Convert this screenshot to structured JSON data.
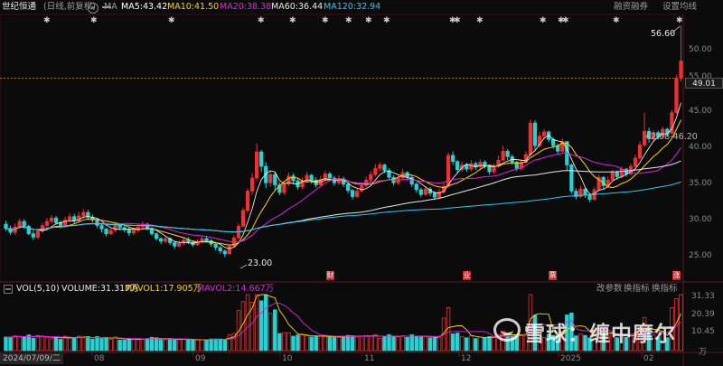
{
  "header": {
    "stock_name": "世纪恒通",
    "mode": "(日线,前复权)",
    "ma_label": "MA",
    "ma_items": [
      {
        "text": "MA5:43.42",
        "color": "#ffffff"
      },
      {
        "text": "MA10:41.50",
        "color": "#ffd60a"
      },
      {
        "text": "MA20:38.38",
        "color": "#e020e0"
      },
      {
        "text": "MA60:36.44",
        "color": "#e8e8e8"
      },
      {
        "text": "MA120:32.94",
        "color": "#2ec8f0"
      }
    ],
    "right_buttons": [
      "融资融券",
      "设置均线"
    ],
    "more_icon": "ellipsis-icon",
    "settings_icon": "gear-icon"
  },
  "price_axis": {
    "labels": [
      "55.00",
      "50.00",
      "45.00",
      "40.00",
      "35.00",
      "30.00",
      "25.00"
    ],
    "current": "49.01"
  },
  "annotations": {
    "high": "56.60",
    "low": "23.00",
    "range": "42.08-46.20"
  },
  "event_marks": [
    "财",
    "业",
    "票",
    "涨"
  ],
  "volume_panel": {
    "title": "VOL(5,10)",
    "volume": "VOLUME:31.317万",
    "mavol1": "MAVOL1:17.905万",
    "mavol2": "MAVOL2:14.667万",
    "buttons": [
      "改参数",
      "换指标",
      "换指标"
    ],
    "axis_labels": [
      "31.33",
      "20.39",
      "10.45"
    ],
    "axis_unit": "万"
  },
  "time_axis": {
    "start": "2024/07/09/二",
    "months": [
      "08",
      "09",
      "10",
      "11",
      "12",
      "2025",
      "02"
    ]
  },
  "watermark": "雪球：缠中摩尔",
  "chart_data": {
    "type": "candlestick",
    "ylim": [
      21.5,
      58
    ],
    "up_color": "#f03030",
    "down_color": "#29d2d2",
    "candles": [
      [
        27.8,
        27.2,
        28.3,
        26.8
      ],
      [
        27.2,
        26.6,
        27.6,
        26.2
      ],
      [
        26.6,
        27.4,
        27.9,
        26.3
      ],
      [
        27.4,
        28.2,
        28.6,
        27.1
      ],
      [
        28.2,
        27.5,
        28.5,
        27.1
      ],
      [
        27.5,
        26.4,
        27.7,
        26.2
      ],
      [
        26.4,
        25.9,
        26.8,
        25.5
      ],
      [
        25.9,
        26.8,
        27.2,
        25.6
      ],
      [
        26.8,
        27.6,
        28.0,
        26.5
      ],
      [
        27.6,
        28.2,
        28.7,
        27.3
      ],
      [
        28.2,
        28.7,
        29.1,
        27.9
      ],
      [
        28.7,
        28.0,
        29.0,
        27.7
      ],
      [
        28.0,
        27.6,
        28.3,
        27.2
      ],
      [
        27.6,
        28.4,
        28.9,
        27.4
      ],
      [
        28.4,
        28.9,
        29.4,
        28.0
      ],
      [
        28.9,
        28.3,
        29.3,
        27.9
      ],
      [
        28.3,
        29.0,
        29.6,
        28.0
      ],
      [
        29.0,
        29.5,
        30.0,
        28.6
      ],
      [
        29.5,
        28.8,
        29.9,
        28.4
      ],
      [
        28.8,
        28.4,
        29.2,
        28.0
      ],
      [
        28.4,
        27.6,
        28.6,
        27.2
      ],
      [
        27.6,
        27.1,
        27.8,
        26.6
      ],
      [
        27.1,
        26.4,
        27.3,
        26.0
      ],
      [
        26.4,
        26.9,
        27.2,
        26.2
      ],
      [
        26.9,
        27.6,
        28.0,
        26.6
      ],
      [
        27.6,
        27.3,
        27.9,
        26.9
      ],
      [
        27.3,
        27.0,
        27.6,
        26.6
      ],
      [
        27.0,
        26.5,
        27.3,
        26.1
      ],
      [
        26.5,
        26.9,
        27.3,
        26.2
      ],
      [
        26.9,
        27.4,
        27.8,
        26.6
      ],
      [
        27.4,
        27.8,
        28.2,
        27.0
      ],
      [
        27.8,
        27.2,
        28.0,
        26.9
      ],
      [
        27.2,
        26.4,
        27.3,
        26.1
      ],
      [
        26.4,
        25.7,
        26.6,
        25.4
      ],
      [
        25.7,
        25.3,
        25.9,
        24.9
      ],
      [
        25.3,
        25.7,
        26.0,
        25.0
      ],
      [
        25.7,
        25.1,
        25.9,
        24.8
      ],
      [
        25.1,
        24.6,
        25.3,
        24.2
      ],
      [
        24.6,
        25.0,
        25.4,
        24.4
      ],
      [
        25.0,
        25.5,
        25.8,
        24.7
      ],
      [
        25.5,
        25.2,
        25.9,
        24.9
      ],
      [
        25.2,
        24.8,
        25.4,
        24.5
      ],
      [
        24.8,
        25.3,
        25.6,
        24.6
      ],
      [
        25.3,
        25.7,
        26.0,
        25.0
      ],
      [
        25.7,
        25.4,
        26.1,
        25.1
      ],
      [
        25.4,
        24.9,
        25.6,
        24.5
      ],
      [
        24.9,
        24.4,
        25.1,
        24.0
      ],
      [
        24.4,
        23.9,
        24.6,
        23.5
      ],
      [
        23.9,
        23.5,
        24.1,
        23.0
      ],
      [
        23.5,
        24.6,
        24.9,
        23.3
      ],
      [
        24.6,
        25.8,
        26.2,
        24.4
      ],
      [
        25.8,
        27.5,
        27.9,
        25.6
      ],
      [
        27.5,
        29.8,
        30.2,
        27.3
      ],
      [
        29.8,
        32.6,
        33.0,
        29.5
      ],
      [
        32.6,
        34.5,
        35.2,
        32.0
      ],
      [
        34.5,
        38.3,
        39.5,
        34.1
      ],
      [
        38.3,
        36.2,
        38.6,
        35.4
      ],
      [
        36.2,
        33.8,
        36.8,
        33.0
      ],
      [
        33.8,
        35.0,
        35.6,
        33.2
      ],
      [
        35.0,
        33.5,
        35.4,
        32.8
      ],
      [
        33.5,
        32.4,
        33.9,
        32.0
      ],
      [
        32.4,
        33.6,
        34.1,
        32.1
      ],
      [
        33.6,
        34.8,
        35.3,
        33.3
      ],
      [
        34.8,
        34.1,
        35.2,
        33.6
      ],
      [
        34.1,
        33.2,
        34.5,
        32.8
      ],
      [
        33.2,
        34.1,
        34.6,
        32.9
      ],
      [
        34.1,
        34.9,
        35.4,
        33.8
      ],
      [
        34.9,
        34.2,
        35.1,
        33.7
      ],
      [
        34.2,
        33.5,
        34.6,
        33.1
      ],
      [
        33.5,
        34.3,
        34.8,
        33.2
      ],
      [
        34.3,
        35.1,
        35.6,
        34.0
      ],
      [
        35.1,
        34.5,
        35.4,
        34.0
      ],
      [
        34.5,
        33.8,
        34.8,
        33.4
      ],
      [
        33.8,
        34.4,
        34.9,
        33.5
      ],
      [
        34.4,
        33.6,
        34.7,
        33.2
      ],
      [
        33.6,
        32.7,
        33.9,
        32.3
      ],
      [
        32.7,
        31.8,
        32.9,
        31.4
      ],
      [
        31.8,
        32.6,
        33.0,
        31.6
      ],
      [
        32.6,
        33.4,
        33.9,
        32.4
      ],
      [
        33.4,
        34.2,
        34.7,
        33.1
      ],
      [
        34.2,
        35.0,
        35.5,
        33.9
      ],
      [
        35.0,
        35.9,
        36.5,
        34.7
      ],
      [
        35.9,
        36.4,
        36.8,
        35.5
      ],
      [
        36.4,
        35.6,
        36.6,
        35.2
      ],
      [
        35.6,
        34.6,
        35.9,
        34.2
      ],
      [
        34.6,
        33.8,
        34.9,
        33.4
      ],
      [
        33.8,
        34.5,
        35.0,
        33.5
      ],
      [
        34.5,
        35.3,
        35.8,
        34.2
      ],
      [
        35.3,
        34.6,
        35.5,
        34.2
      ],
      [
        34.6,
        33.6,
        34.9,
        33.2
      ],
      [
        33.6,
        32.8,
        33.9,
        32.4
      ],
      [
        32.8,
        32.1,
        33.1,
        31.7
      ],
      [
        32.1,
        32.9,
        33.3,
        31.9
      ],
      [
        32.9,
        32.3,
        33.2,
        31.9
      ],
      [
        32.3,
        31.7,
        32.6,
        31.3
      ],
      [
        31.7,
        32.5,
        32.9,
        31.4
      ],
      [
        32.5,
        33.3,
        33.8,
        32.2
      ],
      [
        33.3,
        37.8,
        38.2,
        33.1
      ],
      [
        37.8,
        36.9,
        38.4,
        36.4
      ],
      [
        36.9,
        35.7,
        37.1,
        35.2
      ],
      [
        35.7,
        36.4,
        36.9,
        35.4
      ],
      [
        36.4,
        35.8,
        36.7,
        35.4
      ],
      [
        35.8,
        36.6,
        37.1,
        35.5
      ],
      [
        36.6,
        36.1,
        36.9,
        35.7
      ],
      [
        36.1,
        36.8,
        37.2,
        35.8
      ],
      [
        36.8,
        36.2,
        37.1,
        35.9
      ],
      [
        36.2,
        35.4,
        36.4,
        35.0
      ],
      [
        35.4,
        36.2,
        36.6,
        35.1
      ],
      [
        36.2,
        37.1,
        37.8,
        36.0
      ],
      [
        37.1,
        38.4,
        39.2,
        36.9
      ],
      [
        38.4,
        37.6,
        38.7,
        37.1
      ],
      [
        37.6,
        36.8,
        37.9,
        36.4
      ],
      [
        36.8,
        35.9,
        37.0,
        35.5
      ],
      [
        35.9,
        36.8,
        37.2,
        35.6
      ],
      [
        36.8,
        37.9,
        38.4,
        36.6
      ],
      [
        37.9,
        42.5,
        43.0,
        37.7
      ],
      [
        42.5,
        39.2,
        42.9,
        38.6
      ],
      [
        39.2,
        40.6,
        41.2,
        38.9
      ],
      [
        40.6,
        41.2,
        41.6,
        40.2
      ],
      [
        41.2,
        40.1,
        41.4,
        39.7
      ],
      [
        40.1,
        39.2,
        40.4,
        38.8
      ],
      [
        39.2,
        38.4,
        39.5,
        37.9
      ],
      [
        38.4,
        39.8,
        40.2,
        38.2
      ],
      [
        39.8,
        36.4,
        39.9,
        35.6
      ],
      [
        36.4,
        32.6,
        36.6,
        32.2
      ],
      [
        32.6,
        31.8,
        33.0,
        31.4
      ],
      [
        31.8,
        32.9,
        33.4,
        31.6
      ],
      [
        32.9,
        32.0,
        33.2,
        31.6
      ],
      [
        32.0,
        31.4,
        32.3,
        31.0
      ],
      [
        31.4,
        32.8,
        33.2,
        31.2
      ],
      [
        32.8,
        34.6,
        35.0,
        32.6
      ],
      [
        34.6,
        33.4,
        34.8,
        32.9
      ],
      [
        33.4,
        34.2,
        34.7,
        33.1
      ],
      [
        34.2,
        35.3,
        35.7,
        34.0
      ],
      [
        35.3,
        34.7,
        35.6,
        34.3
      ],
      [
        34.7,
        35.8,
        36.2,
        34.5
      ],
      [
        35.8,
        35.1,
        36.0,
        34.7
      ],
      [
        35.1,
        36.2,
        36.6,
        34.9
      ],
      [
        36.2,
        37.4,
        37.9,
        36.0
      ],
      [
        37.4,
        39.3,
        39.8,
        37.2
      ],
      [
        39.3,
        41.3,
        44.0,
        39.0
      ],
      [
        41.3,
        40.2,
        41.8,
        39.6
      ],
      [
        40.2,
        41.1,
        41.5,
        39.8
      ],
      [
        41.1,
        40.5,
        41.4,
        40.1
      ],
      [
        40.5,
        41.6,
        42.0,
        40.2
      ],
      [
        41.6,
        41.0,
        41.8,
        40.5
      ],
      [
        41.0,
        44.0,
        44.4,
        40.8
      ],
      [
        44.0,
        49.0,
        49.5,
        43.8
      ],
      [
        49.0,
        51.5,
        56.6,
        48.5
      ]
    ]
  }
}
